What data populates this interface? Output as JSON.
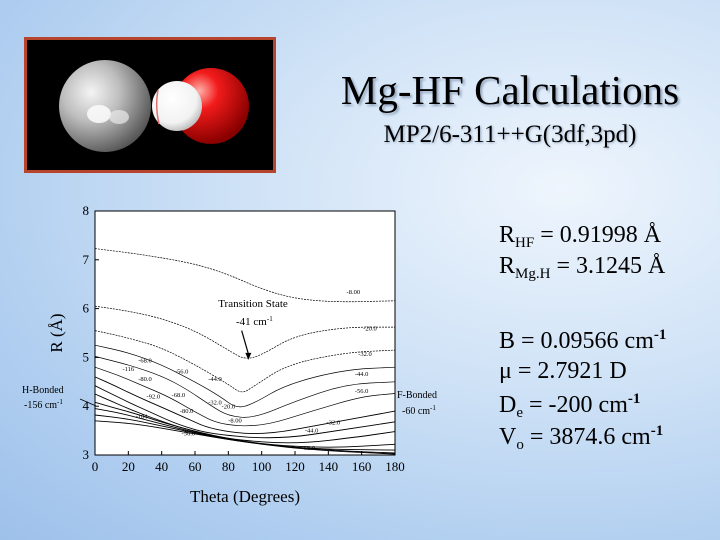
{
  "slide": {
    "title": "Mg-HF Calculations",
    "subtitle": "MP2/6-311++G(3df,3pd)"
  },
  "colors": {
    "background": "#b0cef0",
    "frame_border": "#b7452e",
    "mg_atom": "#bdbdbd",
    "h_atom": "#ffffff",
    "f_atom": "#e01010"
  },
  "molecule_image": {
    "atoms": [
      "Mg",
      "H",
      "F"
    ]
  },
  "parameters": {
    "r_hf": {
      "label": "R",
      "sub": "HF",
      "value": " = 0.91998 Å"
    },
    "r_mgh": {
      "label": "R",
      "sub": "Mg.H",
      "value": " = 3.1245 Å"
    },
    "b": {
      "label": "B = 0.09566 cm",
      "sup": "-1"
    },
    "mu": {
      "label": "μ = 2.7921 D"
    },
    "de": {
      "label": "D",
      "sub": "e",
      "value": " = -200 cm",
      "sup": "-1"
    },
    "vo": {
      "label": "V",
      "sub": "o",
      "value": " = 3874.6 cm",
      "sup": "-1"
    }
  },
  "chart_data": {
    "type": "contour",
    "xlabel": "Theta (Degrees)",
    "ylabel": "R (Å)",
    "xlim": [
      0,
      180
    ],
    "ylim": [
      3,
      8
    ],
    "xticks": [
      "0",
      "20",
      "40",
      "60",
      "80",
      "100",
      "120",
      "140",
      "160",
      "180"
    ],
    "yticks": [
      "3",
      "4",
      "5",
      "6",
      "7",
      "8"
    ],
    "grid": false,
    "annotations": {
      "transition_state": "Transition State",
      "transition_state_energy": "-41 cm",
      "h_bonded": "H-Bonded",
      "h_bonded_energy": "-156 cm",
      "f_bonded": "F-Bonded",
      "f_bonded_energy": "-60 cm",
      "unit_sup": "-1"
    },
    "contour_labels": [
      {
        "text": "-8.00",
        "x": 155,
        "y": 6.3
      },
      {
        "text": "-20.0",
        "x": 165,
        "y": 5.55
      },
      {
        "text": "-32.0",
        "x": 162,
        "y": 5.03
      },
      {
        "text": "-44.0",
        "x": 160,
        "y": 4.62
      },
      {
        "text": "-56.0",
        "x": 160,
        "y": 4.27
      },
      {
        "text": "-32.0",
        "x": 143,
        "y": 3.63
      },
      {
        "text": "-68.0",
        "x": 30,
        "y": 4.9
      },
      {
        "text": "-80.0",
        "x": 30,
        "y": 4.52
      },
      {
        "text": "-92.0",
        "x": 35,
        "y": 4.16
      },
      {
        "text": "-104",
        "x": 28,
        "y": 3.75
      },
      {
        "text": "-116",
        "x": 20,
        "y": 4.72
      },
      {
        "text": "-56.0",
        "x": 52,
        "y": 4.67
      },
      {
        "text": "-68.0",
        "x": 50,
        "y": 4.19
      },
      {
        "text": "-80.0",
        "x": 55,
        "y": 3.86
      },
      {
        "text": "-44.0",
        "x": 72,
        "y": 4.52
      },
      {
        "text": "-32.0",
        "x": 72,
        "y": 4.03
      },
      {
        "text": "-20.0",
        "x": 80,
        "y": 3.95
      },
      {
        "text": "-8.00",
        "x": 84,
        "y": 3.67
      },
      {
        "text": "-56.0",
        "x": 56,
        "y": 3.4
      },
      {
        "text": "-44.0",
        "x": 130,
        "y": 3.46
      },
      {
        "text": "-68.0",
        "x": 128,
        "y": 3.1
      }
    ],
    "contour_curves": [
      [
        [
          0,
          7.23
        ],
        [
          30,
          7.1
        ],
        [
          60,
          6.92
        ],
        [
          80,
          6.7
        ],
        [
          100,
          6.4
        ],
        [
          120,
          6.2
        ],
        [
          145,
          6.13
        ],
        [
          180,
          6.16
        ]
      ],
      [
        [
          0,
          6.05
        ],
        [
          20,
          5.95
        ],
        [
          40,
          5.8
        ],
        [
          60,
          5.55
        ],
        [
          80,
          5.15
        ],
        [
          90,
          4.95
        ],
        [
          100,
          5.05
        ],
        [
          120,
          5.45
        ],
        [
          150,
          5.62
        ],
        [
          180,
          5.62
        ]
      ],
      [
        [
          0,
          5.55
        ],
        [
          20,
          5.4
        ],
        [
          40,
          5.2
        ],
        [
          60,
          4.85
        ],
        [
          80,
          4.45
        ],
        [
          88,
          4.25
        ],
        [
          95,
          4.4
        ],
        [
          115,
          4.85
        ],
        [
          150,
          5.1
        ],
        [
          180,
          5.15
        ]
      ],
      [
        [
          0,
          5.25
        ],
        [
          20,
          5.1
        ],
        [
          40,
          4.85
        ],
        [
          60,
          4.5
        ],
        [
          75,
          4.2
        ],
        [
          85,
          3.95
        ],
        [
          95,
          4.05
        ],
        [
          115,
          4.45
        ],
        [
          150,
          4.75
        ],
        [
          180,
          4.8
        ]
      ],
      [
        [
          0,
          5.02
        ],
        [
          20,
          4.85
        ],
        [
          40,
          4.62
        ],
        [
          55,
          4.35
        ],
        [
          70,
          4.0
        ],
        [
          80,
          3.8
        ],
        [
          95,
          3.75
        ],
        [
          120,
          4.1
        ],
        [
          150,
          4.45
        ],
        [
          180,
          4.5
        ]
      ],
      [
        [
          0,
          4.8
        ],
        [
          15,
          4.62
        ],
        [
          30,
          4.4
        ],
        [
          45,
          4.18
        ],
        [
          60,
          3.88
        ],
        [
          75,
          3.62
        ],
        [
          100,
          3.58
        ],
        [
          130,
          3.9
        ],
        [
          160,
          4.2
        ],
        [
          180,
          4.26
        ]
      ],
      [
        [
          0,
          4.6
        ],
        [
          12,
          4.42
        ],
        [
          25,
          4.2
        ],
        [
          40,
          3.98
        ],
        [
          55,
          3.75
        ],
        [
          70,
          3.52
        ],
        [
          100,
          3.4
        ],
        [
          140,
          3.65
        ],
        [
          180,
          3.9
        ]
      ],
      [
        [
          0,
          4.42
        ],
        [
          10,
          4.25
        ],
        [
          22,
          4.05
        ],
        [
          35,
          3.85
        ],
        [
          50,
          3.62
        ],
        [
          70,
          3.42
        ],
        [
          110,
          3.32
        ],
        [
          150,
          3.52
        ],
        [
          180,
          3.68
        ]
      ],
      [
        [
          0,
          4.25
        ],
        [
          10,
          4.1
        ],
        [
          20,
          3.95
        ],
        [
          35,
          3.75
        ],
        [
          55,
          3.52
        ],
        [
          80,
          3.32
        ],
        [
          120,
          3.22
        ],
        [
          160,
          3.38
        ],
        [
          180,
          3.48
        ]
      ],
      [
        [
          0,
          4.08
        ],
        [
          10,
          3.98
        ],
        [
          25,
          3.84
        ],
        [
          45,
          3.62
        ],
        [
          70,
          3.4
        ],
        [
          100,
          3.22
        ],
        [
          140,
          3.14
        ],
        [
          180,
          3.22
        ]
      ],
      [
        [
          0,
          3.95
        ],
        [
          15,
          3.86
        ],
        [
          35,
          3.68
        ],
        [
          60,
          3.46
        ],
        [
          90,
          3.26
        ],
        [
          130,
          3.12
        ],
        [
          180,
          3.1
        ]
      ],
      [
        [
          0,
          3.82
        ],
        [
          20,
          3.74
        ],
        [
          45,
          3.56
        ],
        [
          75,
          3.34
        ],
        [
          110,
          3.18
        ],
        [
          150,
          3.08
        ],
        [
          180,
          3.04
        ]
      ],
      [
        [
          0,
          3.7
        ],
        [
          25,
          3.64
        ],
        [
          55,
          3.46
        ],
        [
          90,
          3.26
        ],
        [
          130,
          3.1
        ],
        [
          180,
          3.02
        ]
      ]
    ],
    "ts_arrow": {
      "from": [
        88,
        5.55
      ],
      "to": [
        92,
        4.95
      ]
    },
    "h_min": {
      "x": 3,
      "y": 4.0
    },
    "f_min": {
      "x": 176,
      "y": 4.35
    }
  }
}
